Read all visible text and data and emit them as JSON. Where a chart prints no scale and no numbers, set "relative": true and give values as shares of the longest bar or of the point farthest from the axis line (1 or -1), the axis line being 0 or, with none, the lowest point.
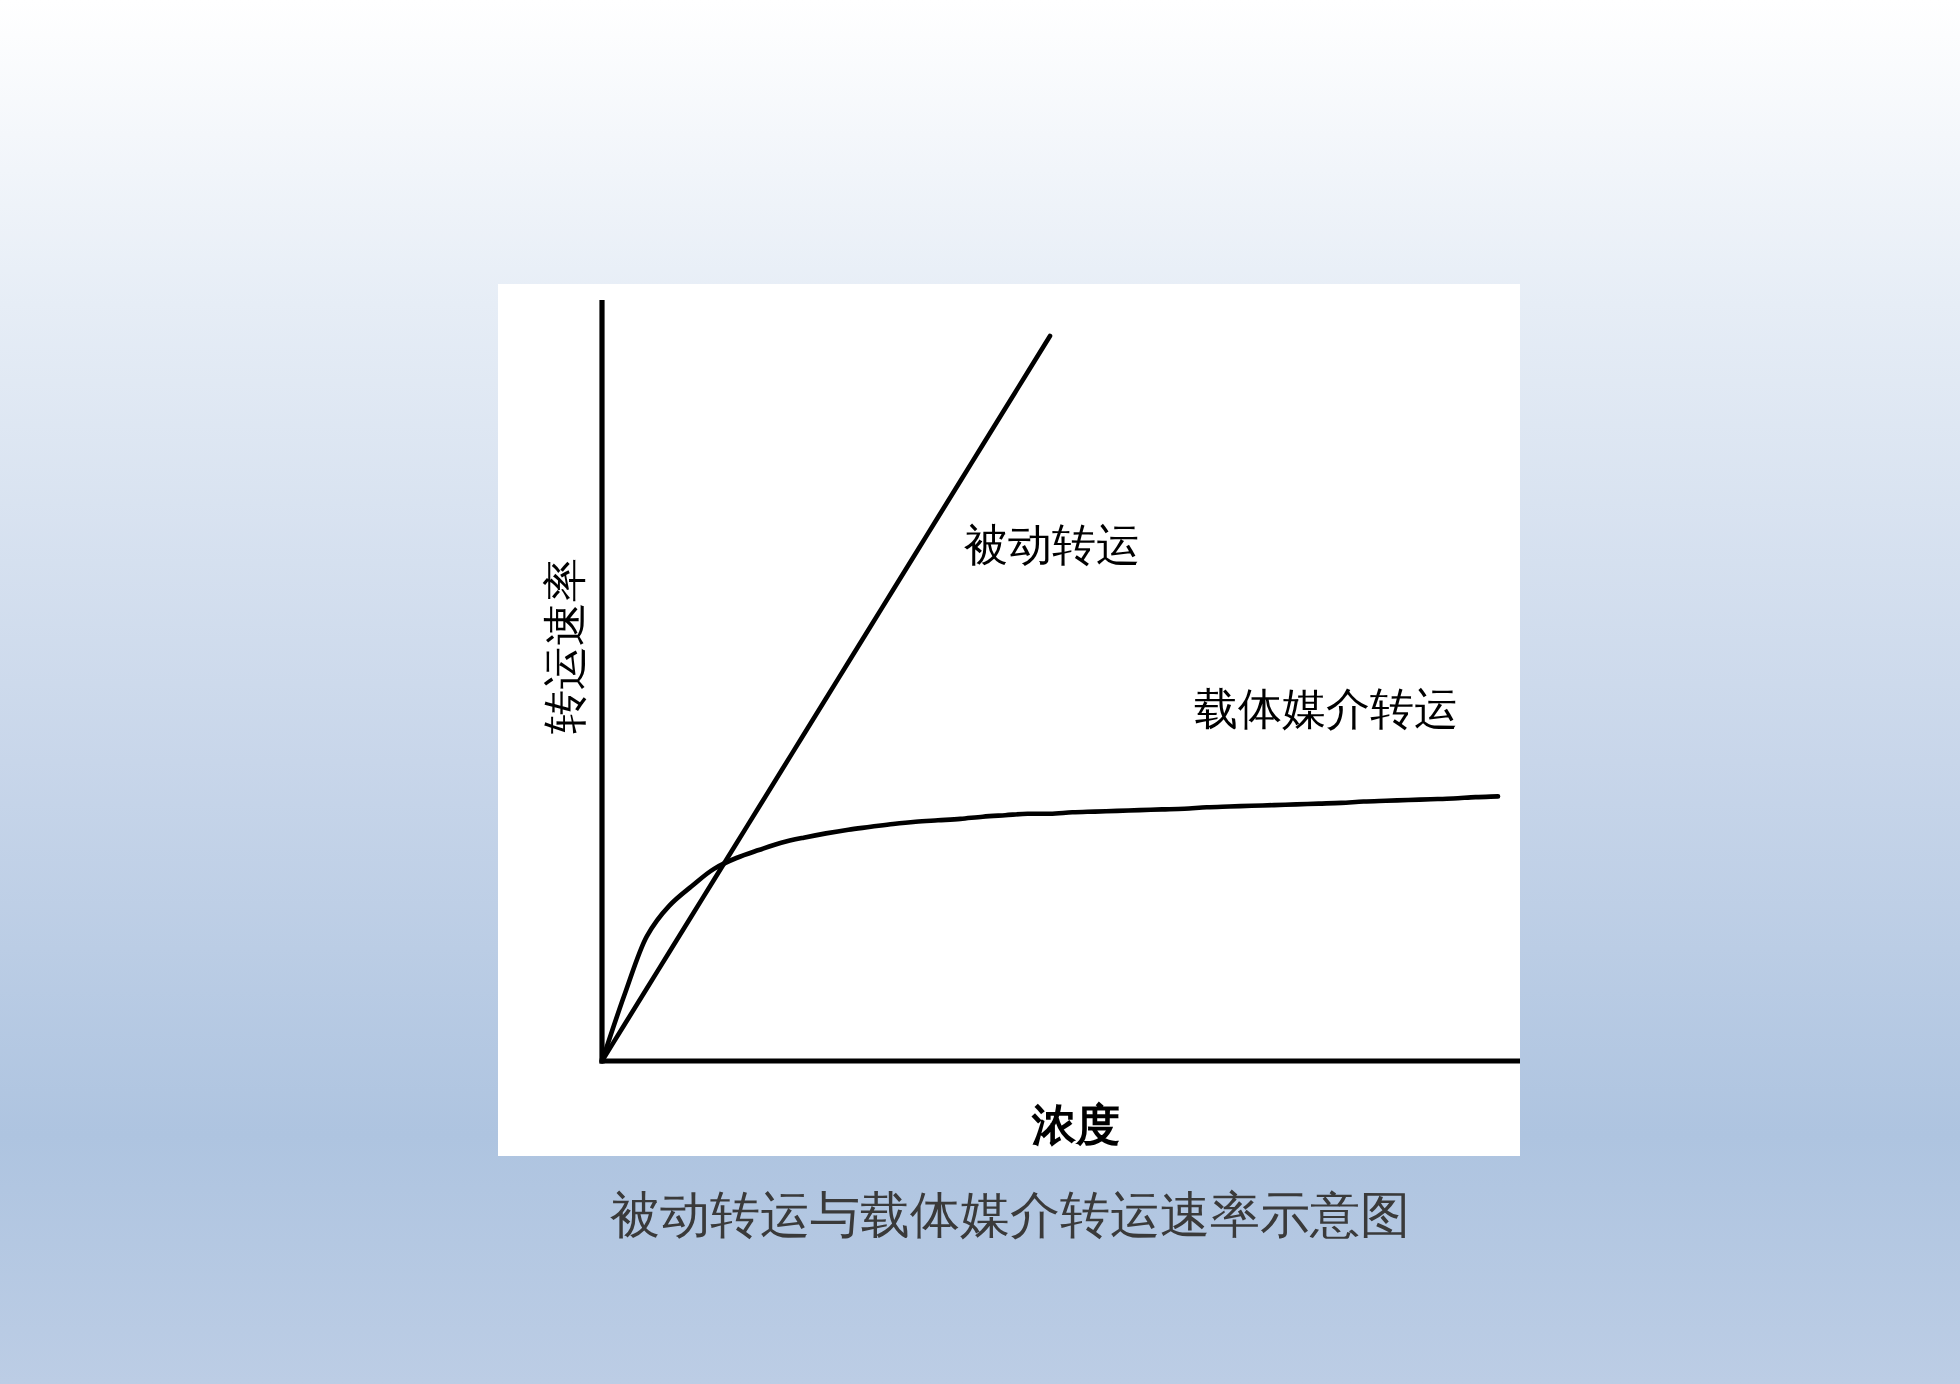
{
  "chart_data": {
    "type": "line",
    "title": "被动转运与载体媒介转运速率示意图",
    "xlabel": "浓度",
    "ylabel": "转运速率",
    "relative": true,
    "categories": [
      null,
      null,
      null,
      null,
      null,
      null,
      null,
      null,
      null,
      null,
      null,
      null,
      null,
      null,
      null,
      null,
      null,
      null,
      null,
      null,
      null,
      null,
      null,
      null,
      null,
      null,
      null,
      null,
      null,
      null,
      null,
      null,
      null,
      null,
      null,
      null,
      null,
      null,
      null,
      null,
      null
    ],
    "series": [
      {
        "name": "被动转运",
        "color": "#000000",
        "values": [
          0,
          0.05,
          0.1,
          0.15,
          0.2,
          0.25,
          0.3,
          0.35,
          0.4,
          0.45,
          0.5,
          0.55,
          0.6,
          0.65,
          0.7,
          0.75,
          0.8,
          0.85,
          0.9,
          0.95,
          1,
          null,
          null,
          null,
          null,
          null,
          null,
          null,
          null,
          null,
          null,
          null,
          null,
          null,
          null,
          null,
          null,
          null,
          null,
          null,
          null
        ]
      },
      {
        "name": "载体媒介转运",
        "color": "#000000",
        "values": [
          0,
          0.091,
          0.172,
          0.214,
          0.241,
          0.265,
          0.28,
          0.291,
          0.301,
          0.308,
          0.314,
          0.319,
          0.323,
          0.327,
          0.33,
          0.332,
          0.334,
          0.337,
          0.339,
          0.341,
          0.341,
          0.343,
          0.344,
          0.345,
          0.346,
          0.347,
          0.348,
          0.35,
          0.351,
          0.352,
          0.353,
          0.354,
          0.355,
          0.356,
          0.358,
          0.359,
          0.36,
          0.361,
          0.362,
          0.364,
          0.365
        ]
      }
    ]
  }
}
